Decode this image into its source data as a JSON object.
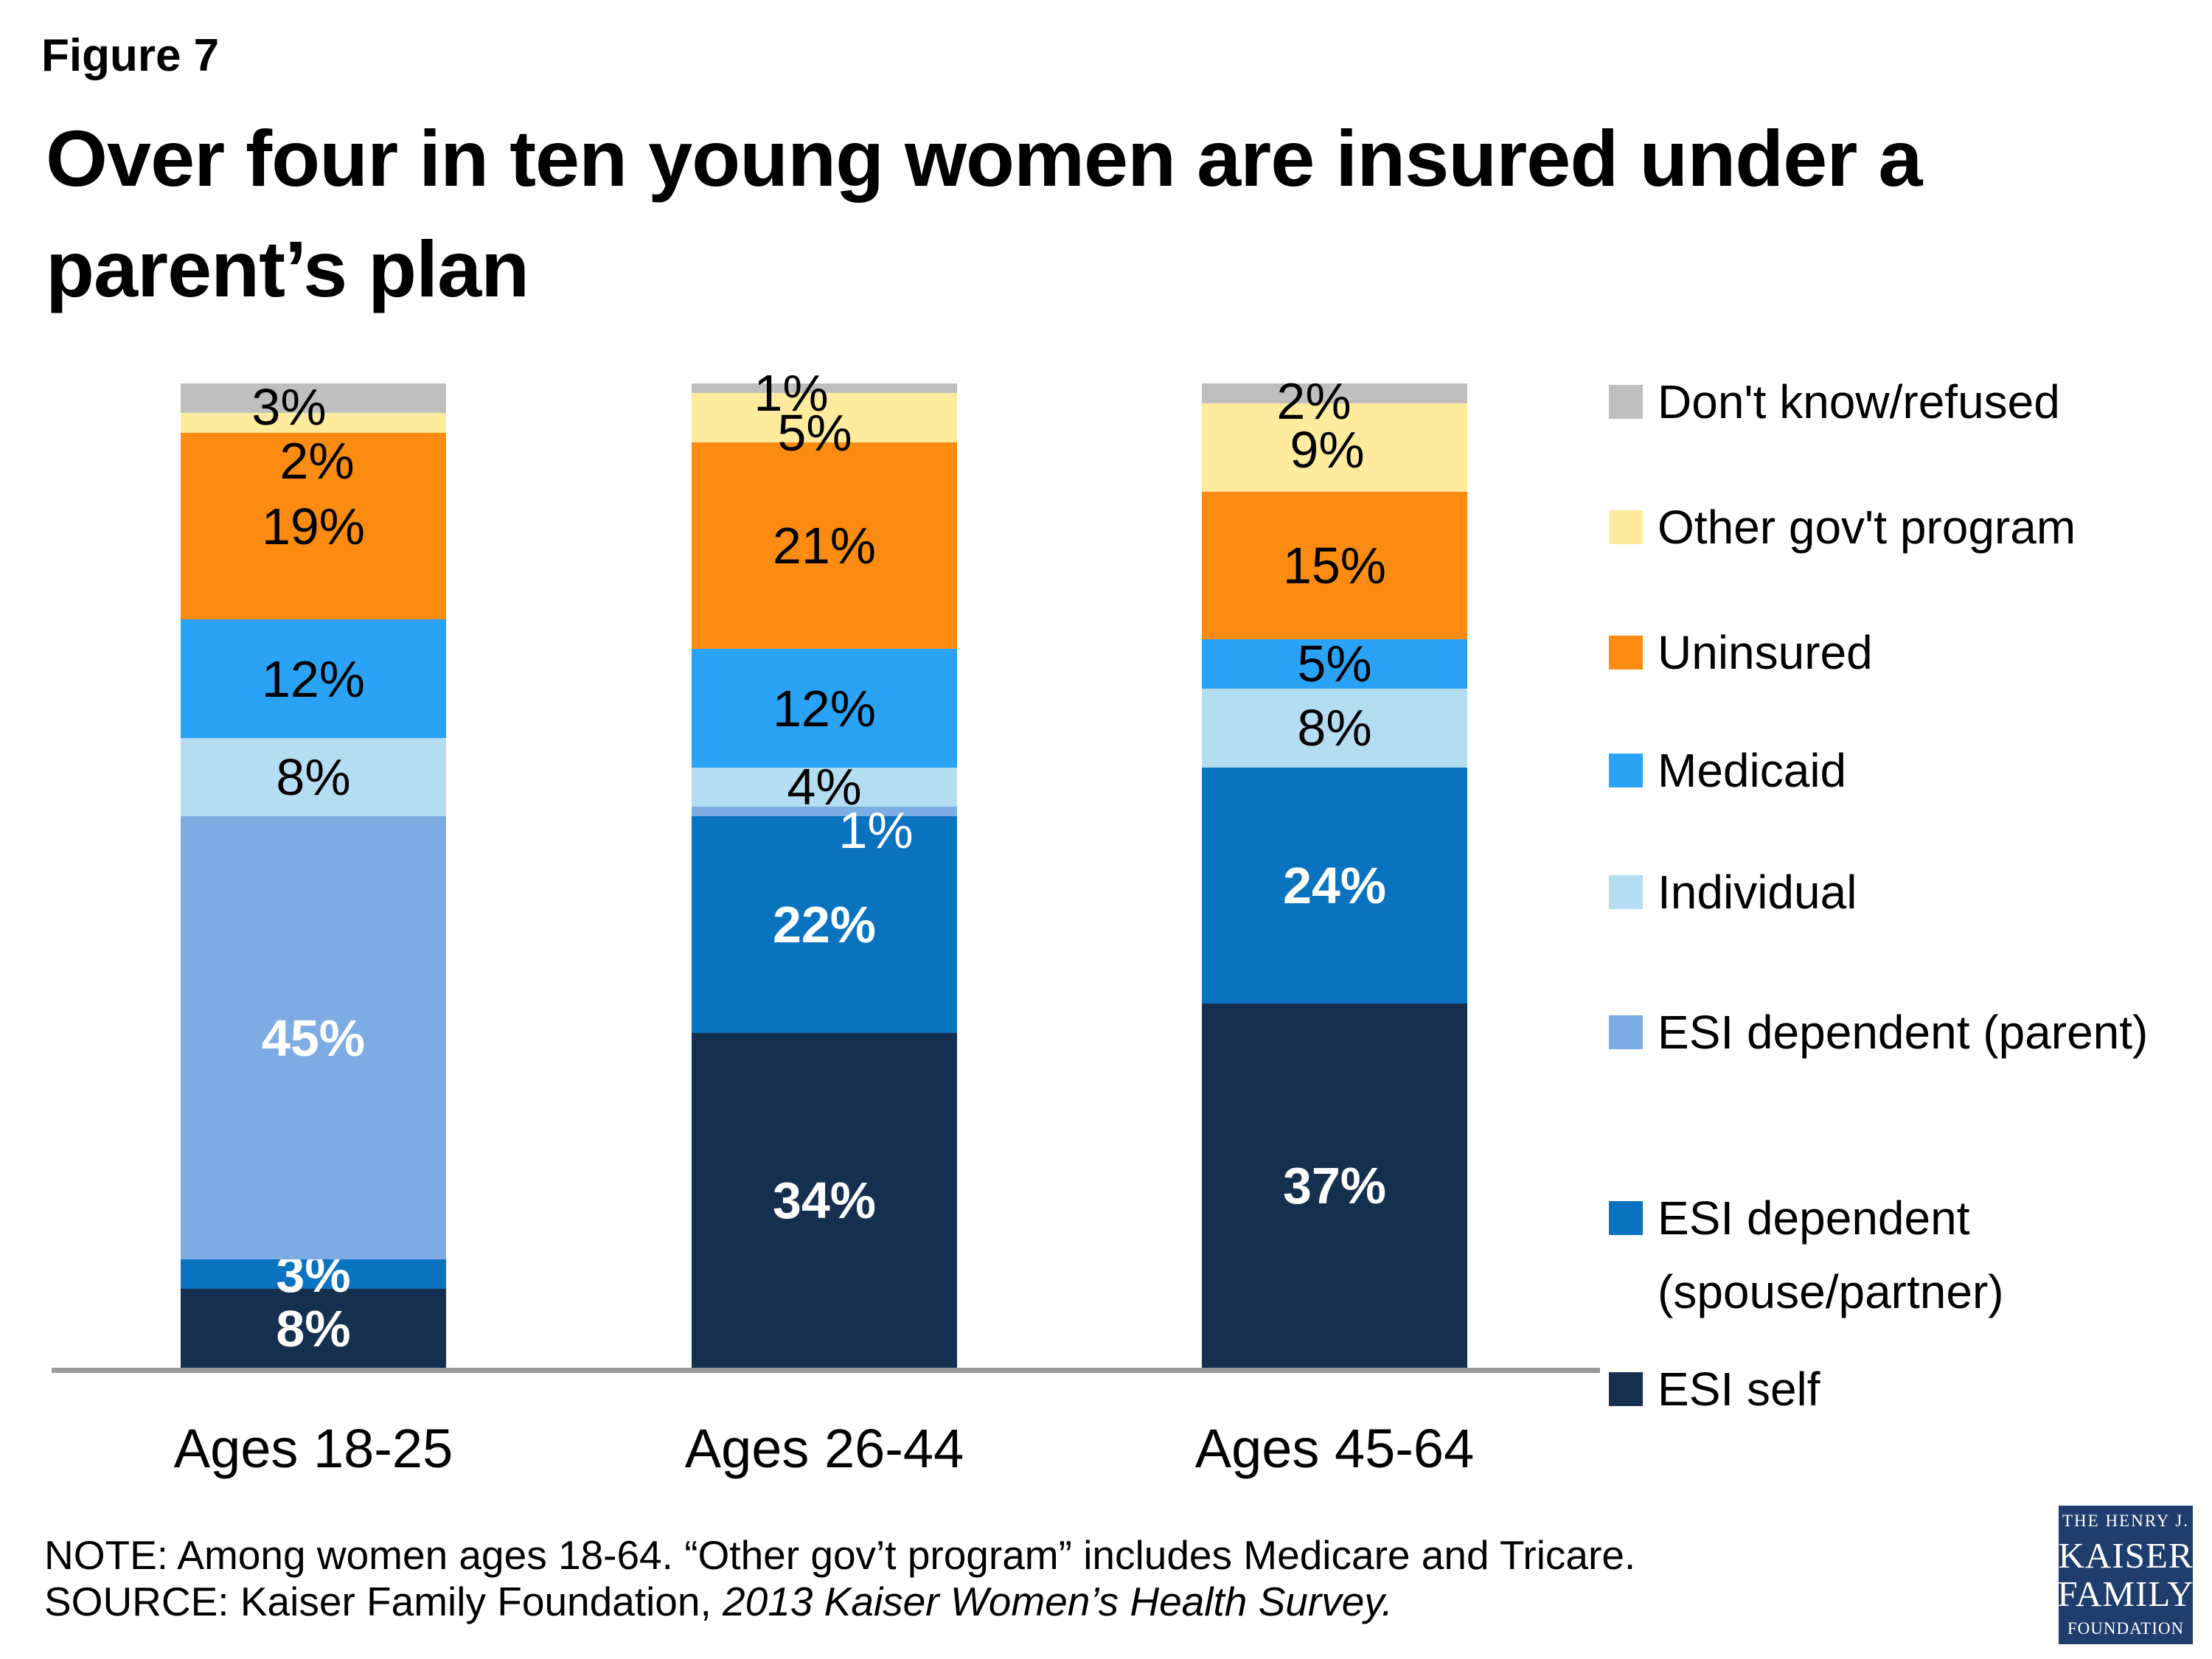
{
  "figure_label": "Figure 7",
  "title": {
    "line1": "Over four in ten young women are insured under a",
    "line2": "parent’s plan"
  },
  "chart_data": {
    "type": "bar",
    "subtype": "stacked-vertical",
    "unit": "%",
    "categories": [
      "Ages 18-25",
      "Ages 26-44",
      "Ages 45-64"
    ],
    "series": [
      {
        "id": "esi_self",
        "name": "ESI self",
        "color": "#152f4f",
        "values": [
          8,
          34,
          37
        ],
        "label_style": "white-bold"
      },
      {
        "id": "esi_spouse",
        "name": "ESI dependent (spouse/partner)",
        "color": "#0a73c0",
        "values": [
          3,
          22,
          24
        ],
        "label_style": "white-bold"
      },
      {
        "id": "esi_parent",
        "name": "ESI dependent (parent)",
        "color": "#7dace3",
        "values": [
          45,
          1,
          0
        ],
        "label_style": "white-bold"
      },
      {
        "id": "individual",
        "name": "Individual",
        "color": "#b5ddf2",
        "values": [
          8,
          4,
          8
        ],
        "label_style": "black"
      },
      {
        "id": "medicaid",
        "name": "Medicaid",
        "color": "#2aa3f7",
        "values": [
          12,
          12,
          5
        ],
        "label_style": "black"
      },
      {
        "id": "uninsured",
        "name": "Uninsured",
        "color": "#fb8c11",
        "values": [
          19,
          21,
          15
        ],
        "label_style": "black"
      },
      {
        "id": "other_gov",
        "name": "Other gov't program",
        "color": "#ffeb9e",
        "values": [
          2,
          5,
          9
        ],
        "label_style": "black"
      },
      {
        "id": "dont_know",
        "name": "Don't know/refused",
        "color": "#bfbfbf",
        "values": [
          3,
          1,
          2
        ],
        "label_style": "black"
      }
    ],
    "label_overrides": {
      "0-dont_know": {
        "dx": -33,
        "dy": 12
      },
      "0-other_gov": {
        "dx": 5,
        "dy": 52
      },
      "1-dont_know": {
        "dx": -45,
        "dy": 6
      },
      "1-other_gov": {
        "dx": -13,
        "dy": 20
      },
      "1-esi_parent": {
        "dx": 70,
        "dy": 25,
        "weight": "normal"
      },
      "2-dont_know": {
        "dx": -28,
        "dy": 11
      },
      "2-other_gov": {
        "dx": -10,
        "dy": 3
      }
    },
    "ylim": [
      0,
      100
    ],
    "grid": false,
    "legend_position": "right",
    "axis_line_color": "#9b9b9b"
  },
  "legend": {
    "items": [
      {
        "id": "dont_know",
        "label": "Don't know/refused",
        "color": "#bfbfbf"
      },
      {
        "id": "other_gov",
        "label": "Other gov't program",
        "color": "#ffeb9e"
      },
      {
        "id": "uninsured",
        "label": "Uninsured",
        "color": "#fb8c11"
      },
      {
        "id": "medicaid",
        "label": "Medicaid",
        "color": "#2aa3f7"
      },
      {
        "id": "individual",
        "label": "Individual",
        "color": "#b5ddf2"
      },
      {
        "id": "esi_parent",
        "label": "ESI dependent (parent)",
        "color": "#7dace3"
      },
      {
        "id": "esi_spouse",
        "label": "ESI dependent\n(spouse/partner)",
        "color": "#0a73c0"
      },
      {
        "id": "esi_self",
        "label": "ESI self",
        "color": "#152f4f"
      }
    ]
  },
  "note": {
    "line1": "NOTE: Among women ages 18-64. “Other gov’t program” includes Medicare and Tricare.",
    "source_prefix": "SOURCE: Kaiser Family Foundation, ",
    "source_italic": "2013 Kaiser Women’s Health Survey."
  },
  "logo": {
    "line1": "THE HENRY J.",
    "line2": "KAISER",
    "line3": "FAMILY",
    "line4": "FOUNDATION",
    "bg_color": "#1f3e6e"
  }
}
